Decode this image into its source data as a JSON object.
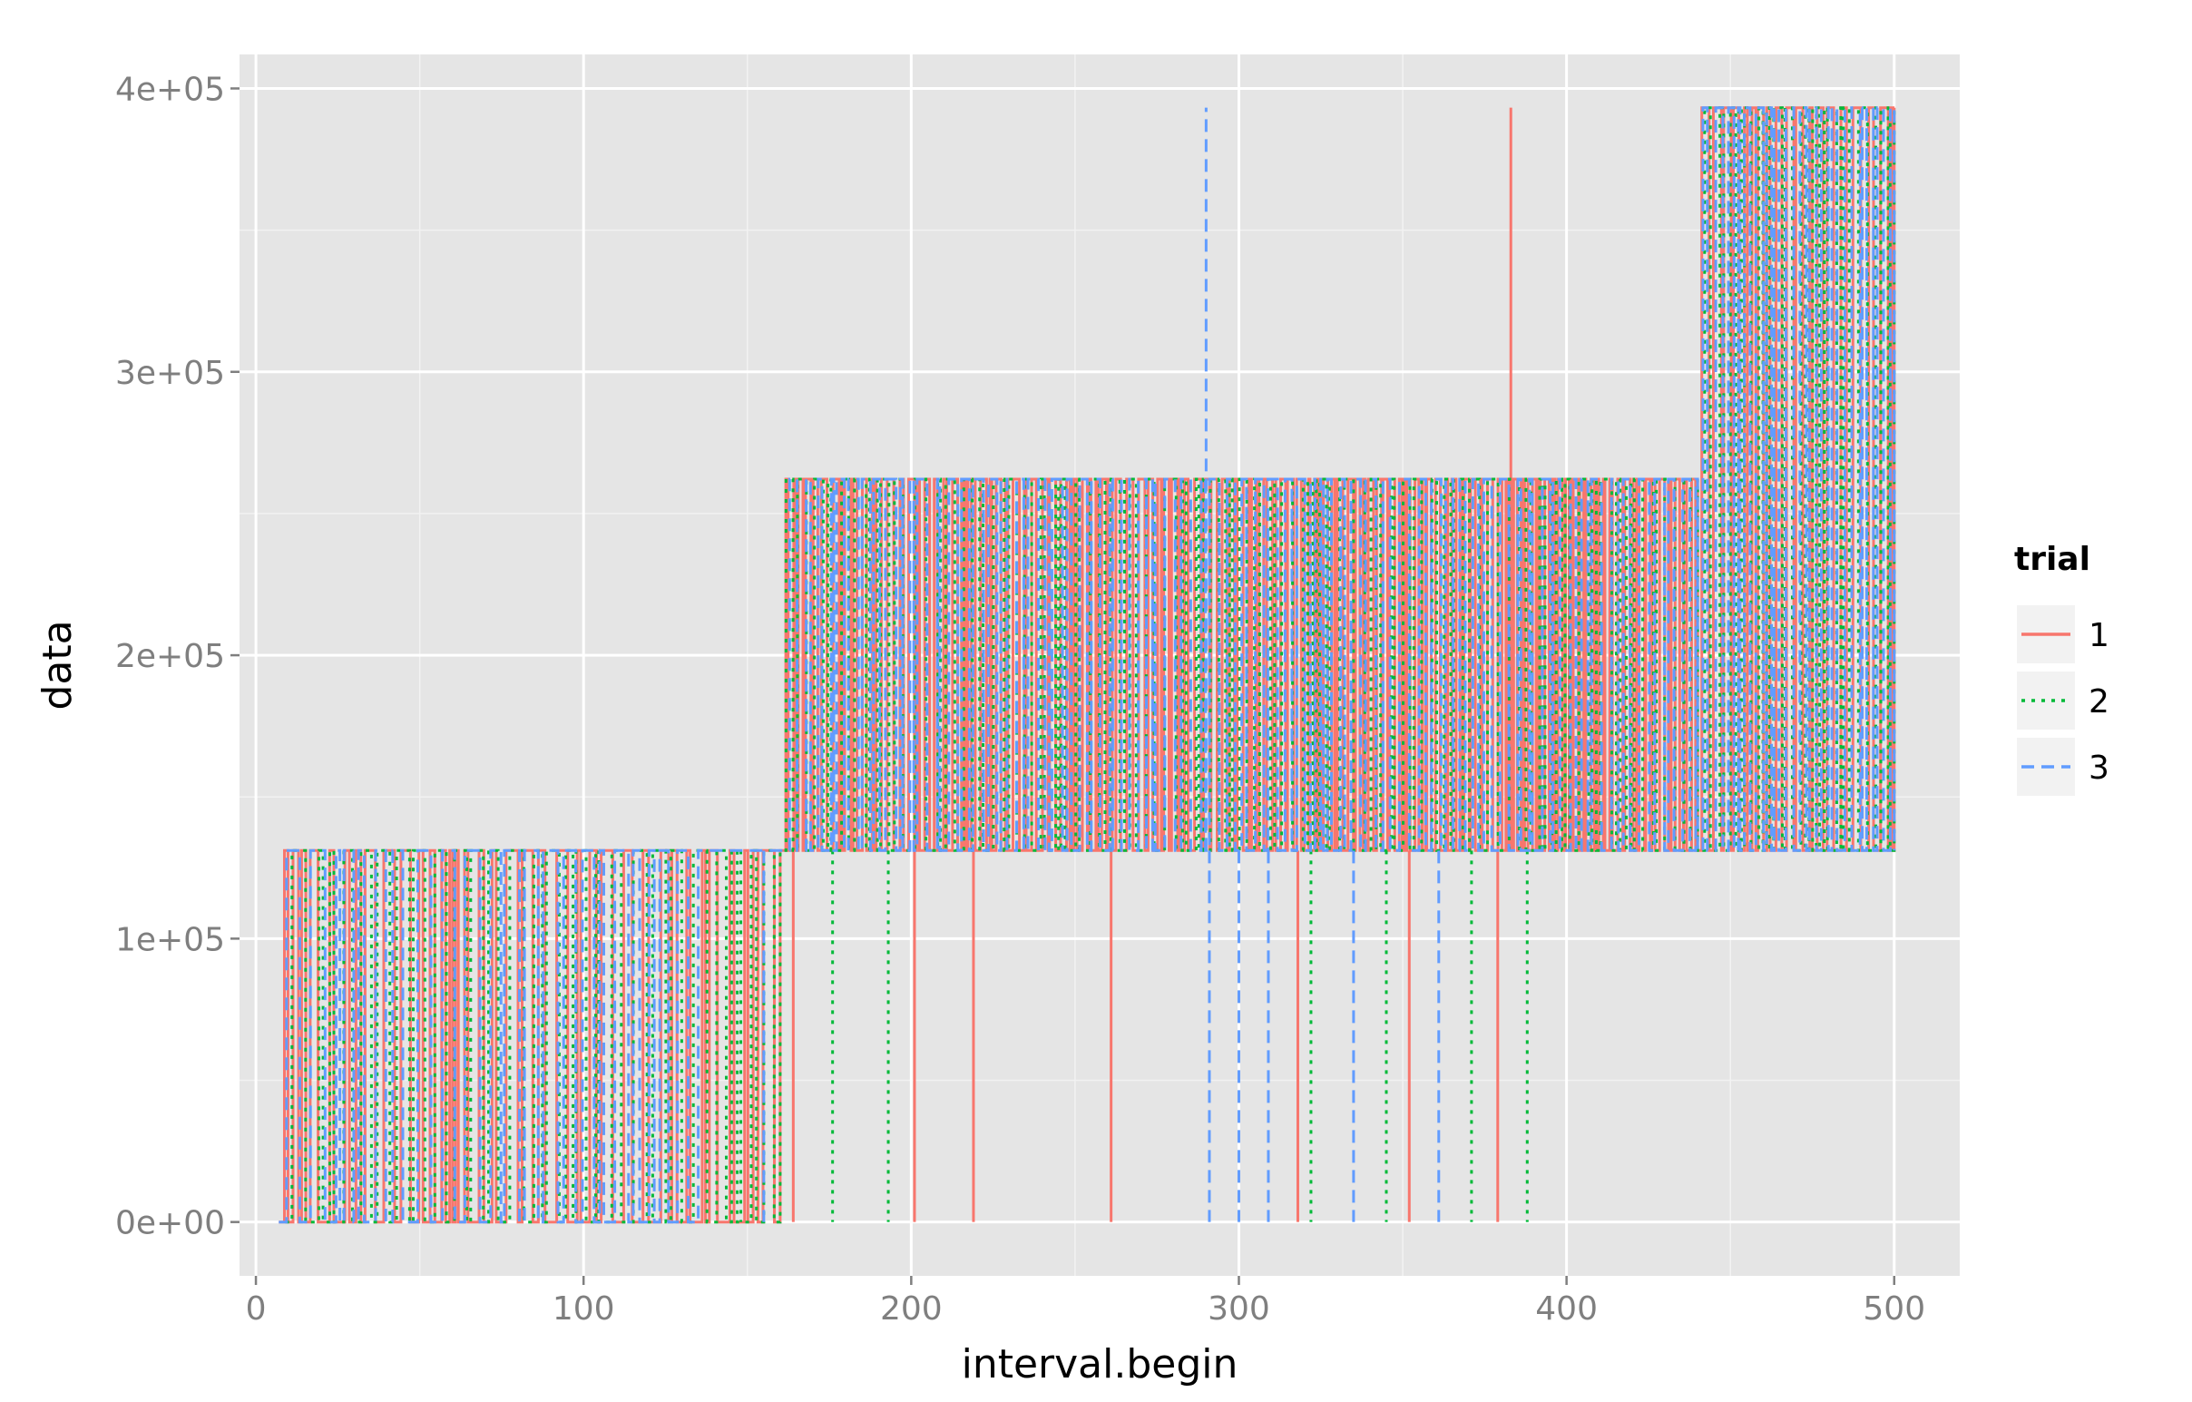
{
  "chart_data": {
    "type": "line",
    "title": "",
    "xlabel": "interval.begin",
    "ylabel": "data",
    "xlim": [
      -5,
      520
    ],
    "ylim": [
      -19000,
      412000
    ],
    "x_ticks": [
      0,
      100,
      200,
      300,
      400,
      500
    ],
    "x_tick_labels": [
      "0",
      "100",
      "200",
      "300",
      "400",
      "500"
    ],
    "y_ticks": [
      0,
      100000,
      200000,
      300000,
      400000
    ],
    "y_tick_labels": [
      "0e+00",
      "1e+05",
      "2e+05",
      "3e+05",
      "4e+05"
    ],
    "grid": true,
    "legend": {
      "title": "trial",
      "position": "right"
    },
    "levels": [
      0,
      131072,
      262144,
      393216
    ],
    "series": [
      {
        "name": "1",
        "color": "#F8766D",
        "dash": "solid",
        "segments": [
          {
            "x_start": 7,
            "x_end": 160,
            "low": 0,
            "high": 131072,
            "switch_interval": 2.4
          },
          {
            "x_start": 160,
            "x_end": 320,
            "low": 131072,
            "high": 262144,
            "switch_interval": 1.2
          },
          {
            "x_start": 320,
            "x_end": 440,
            "low": 131072,
            "high": 262144,
            "switch_interval": 1.0
          },
          {
            "x_start": 440,
            "x_end": 500,
            "low": 131072,
            "high": 393216,
            "switch_interval": 1.5
          }
        ],
        "spikes": [
          {
            "x": 164,
            "from": 131072,
            "to": 0
          },
          {
            "x": 201,
            "from": 131072,
            "to": 0
          },
          {
            "x": 219,
            "from": 131072,
            "to": 0
          },
          {
            "x": 261,
            "from": 131072,
            "to": 0
          },
          {
            "x": 318,
            "from": 131072,
            "to": 0
          },
          {
            "x": 352,
            "from": 131072,
            "to": 0
          },
          {
            "x": 379,
            "from": 131072,
            "to": 0
          },
          {
            "x": 383,
            "from": 262144,
            "to": 393216
          }
        ]
      },
      {
        "name": "2",
        "color": "#00BA38",
        "dash": "dotted",
        "segments": [
          {
            "x_start": 9,
            "x_end": 160,
            "low": 0,
            "high": 131072,
            "switch_interval": 2.6
          },
          {
            "x_start": 160,
            "x_end": 440,
            "low": 131072,
            "high": 262144,
            "switch_interval": 2.2
          },
          {
            "x_start": 440,
            "x_end": 500,
            "low": 131072,
            "high": 393216,
            "switch_interval": 1.8
          }
        ],
        "spikes": [
          {
            "x": 148,
            "from": 131072,
            "to": 0
          },
          {
            "x": 176,
            "from": 131072,
            "to": 0
          },
          {
            "x": 193,
            "from": 131072,
            "to": 0
          },
          {
            "x": 322,
            "from": 131072,
            "to": 0
          },
          {
            "x": 345,
            "from": 131072,
            "to": 0
          },
          {
            "x": 371,
            "from": 131072,
            "to": 0
          },
          {
            "x": 388,
            "from": 131072,
            "to": 0
          }
        ]
      },
      {
        "name": "3",
        "color": "#619CFF",
        "dash": "dashed",
        "segments": [
          {
            "x_start": 7,
            "x_end": 135,
            "low": 0,
            "high": 131072,
            "switch_interval": 2.8
          },
          {
            "x_start": 160,
            "x_end": 440,
            "low": 131072,
            "high": 262144,
            "switch_interval": 2.0
          },
          {
            "x_start": 440,
            "x_end": 500,
            "low": 131072,
            "high": 393216,
            "switch_interval": 1.6
          }
        ],
        "spikes": [
          {
            "x": 155,
            "from": 131072,
            "to": 0
          },
          {
            "x": 290,
            "from": 131072,
            "to": 393216
          },
          {
            "x": 291,
            "from": 131072,
            "to": 0
          },
          {
            "x": 300,
            "from": 131072,
            "to": 0
          },
          {
            "x": 309,
            "from": 131072,
            "to": 0
          },
          {
            "x": 335,
            "from": 131072,
            "to": 0
          },
          {
            "x": 361,
            "from": 131072,
            "to": 0
          }
        ]
      }
    ]
  }
}
